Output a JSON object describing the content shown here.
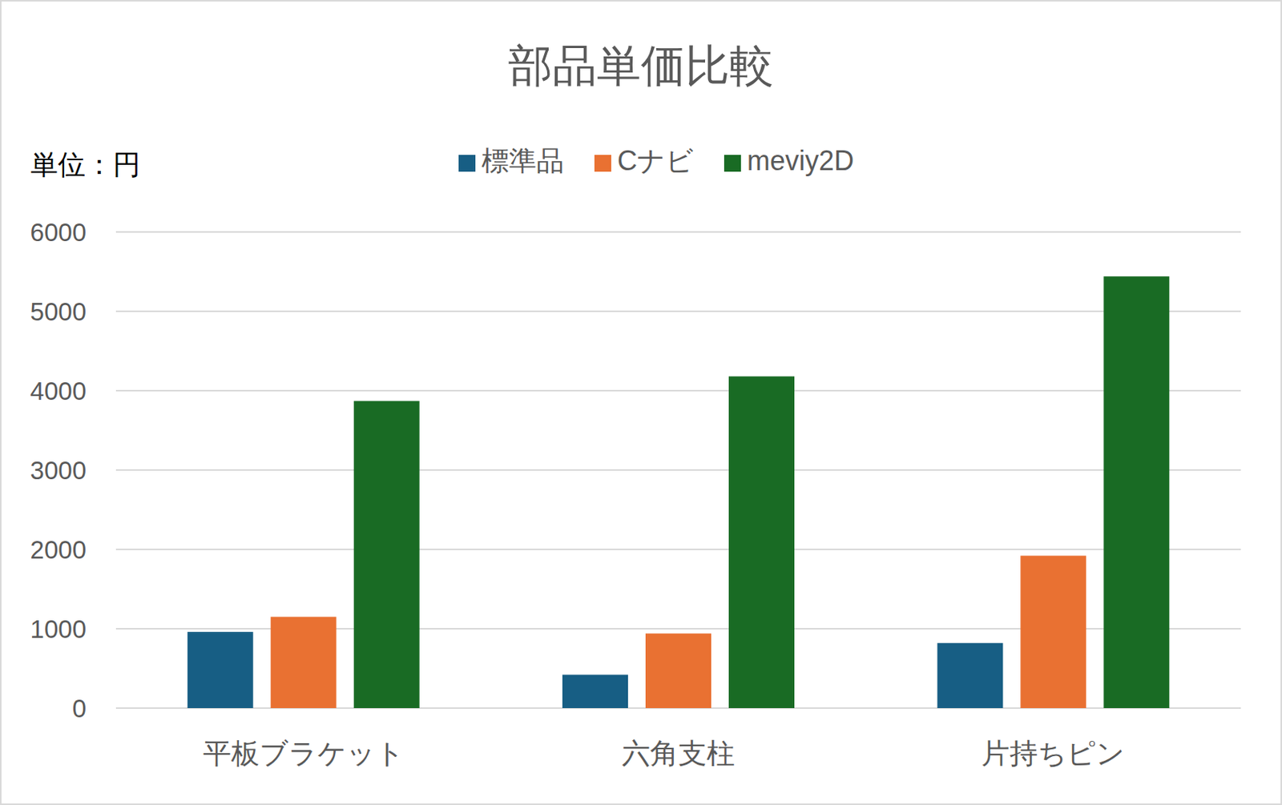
{
  "chart_data": {
    "type": "bar",
    "title": "部品単価比較",
    "ylabel": "単位：円",
    "categories": [
      "平板ブラケット",
      "六角支柱",
      "片持ちピン"
    ],
    "series": [
      {
        "name": "標準品",
        "color": "#175e84",
        "values": [
          960,
          420,
          820
        ]
      },
      {
        "name": "Cナビ",
        "color": "#e97132",
        "values": [
          1150,
          940,
          1920
        ]
      },
      {
        "name": "meviy2D",
        "color": "#196b24",
        "values": [
          3870,
          4180,
          5440
        ]
      }
    ],
    "ylim": [
      0,
      6000
    ],
    "yticks": [
      0,
      1000,
      2000,
      3000,
      4000,
      5000,
      6000
    ],
    "grid": true,
    "legend": "top"
  }
}
